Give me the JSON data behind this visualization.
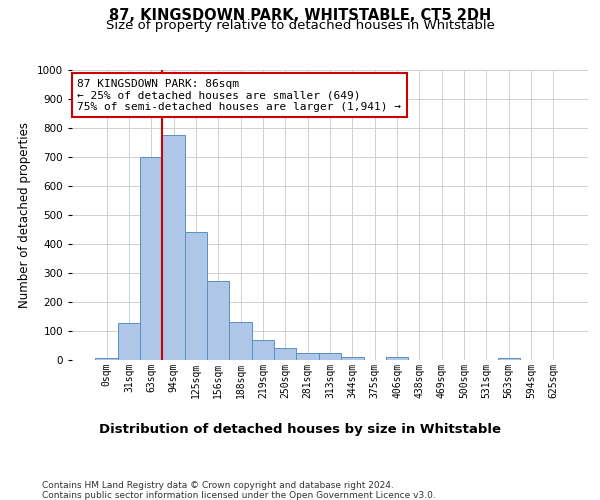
{
  "title": "87, KINGSDOWN PARK, WHITSTABLE, CT5 2DH",
  "subtitle": "Size of property relative to detached houses in Whitstable",
  "xlabel_bottom": "Distribution of detached houses by size in Whitstable",
  "ylabel": "Number of detached properties",
  "bar_labels": [
    "0sqm",
    "31sqm",
    "63sqm",
    "94sqm",
    "125sqm",
    "156sqm",
    "188sqm",
    "219sqm",
    "250sqm",
    "281sqm",
    "313sqm",
    "344sqm",
    "375sqm",
    "406sqm",
    "438sqm",
    "469sqm",
    "500sqm",
    "531sqm",
    "563sqm",
    "594sqm",
    "625sqm"
  ],
  "bar_values": [
    8,
    127,
    700,
    775,
    443,
    272,
    132,
    70,
    40,
    23,
    23,
    12,
    0,
    12,
    0,
    0,
    0,
    0,
    8,
    0,
    0
  ],
  "bar_color": "#aec6e8",
  "bar_edge_color": "#5a8fc2",
  "vline_x_index": 3,
  "vline_color": "#cc0000",
  "annotation_text": "87 KINGSDOWN PARK: 86sqm\n← 25% of detached houses are smaller (649)\n75% of semi-detached houses are larger (1,941) →",
  "annotation_box_color": "#ffffff",
  "annotation_box_edge": "#cc0000",
  "ylim": [
    0,
    1000
  ],
  "yticks": [
    0,
    100,
    200,
    300,
    400,
    500,
    600,
    700,
    800,
    900,
    1000
  ],
  "footer_text": "Contains HM Land Registry data © Crown copyright and database right 2024.\nContains public sector information licensed under the Open Government Licence v3.0.",
  "grid_color": "#d0d0d0",
  "bg_color": "#ffffff",
  "title_fontsize": 10.5,
  "subtitle_fontsize": 9.5,
  "tick_fontsize": 7,
  "ylabel_fontsize": 8.5,
  "annotation_fontsize": 8,
  "footer_fontsize": 6.5
}
